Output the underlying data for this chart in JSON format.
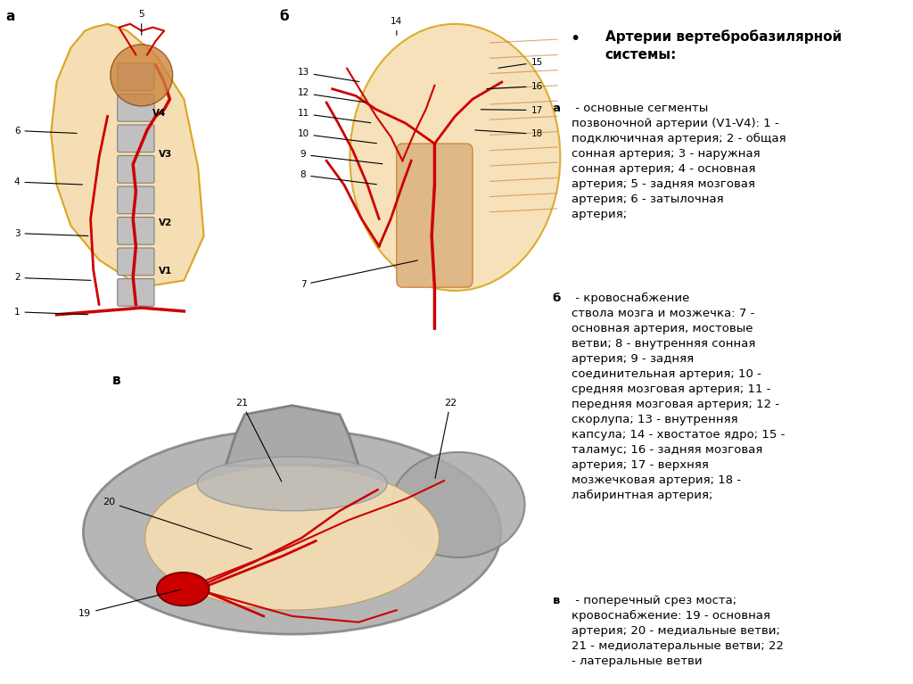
{
  "bg_color": "#ffffff",
  "title_bold": "Артерии вертебробазилярной\nсистемы:",
  "figsize": [
    10.24,
    7.67
  ],
  "dpi": 100,
  "text_fs": 9.5,
  "title_fs": 11,
  "bullet": "•",
  "para_a_bold": "а",
  "para_a_rest": " - основные сегменты\nпозвоночной артерии (V1-V4): 1 -\nподключичная артерия; 2 - общая\nсонная артерия; 3 - наружная\nсонная артерия; 4 - основная\nартерия; 5 - задняя мозговая\nартерия; 6 - затылочная\nартерия; ",
  "para_b_bold": "б",
  "para_b_rest": " - кровоснабжение\nствола мозга и мозжечка: 7 -\nосновная артерия, мостовые\nветви; 8 - внутренняя сонная\nартерия; 9 - задняя\nсоединительная артерия; 10 -\nсредняя мозговая артерия; 11 -\nпередняя мозговая артерия; 12 -\nскорлупа; 13 - внутренняя\nкапсула; 14 - хвостатое ядро; 15 -\nталамус; 16 - задняя мозговая\nартерия; 17 - верхняя\nмозжечковая артерия; 18 -\nлабиринтная артерия;",
  "para_v_bold": "в",
  "para_v_rest": " - поперечный срез моста;\nкровоснабжение: 19 - основная\nартерия; 20 - медиальные ветви;\n21 - медиолатеральные ветви; 22\n- латеральные ветви",
  "skull_color": "#F5DEB3",
  "skull_edge": "#DAA520",
  "vert_color": "#C0C0C0",
  "vert_edge": "#808080",
  "brain_color": "#CD853F",
  "artery_color": "#CC0000",
  "gray_color": "#A9A9A9",
  "beige_color": "#F5DEB3"
}
